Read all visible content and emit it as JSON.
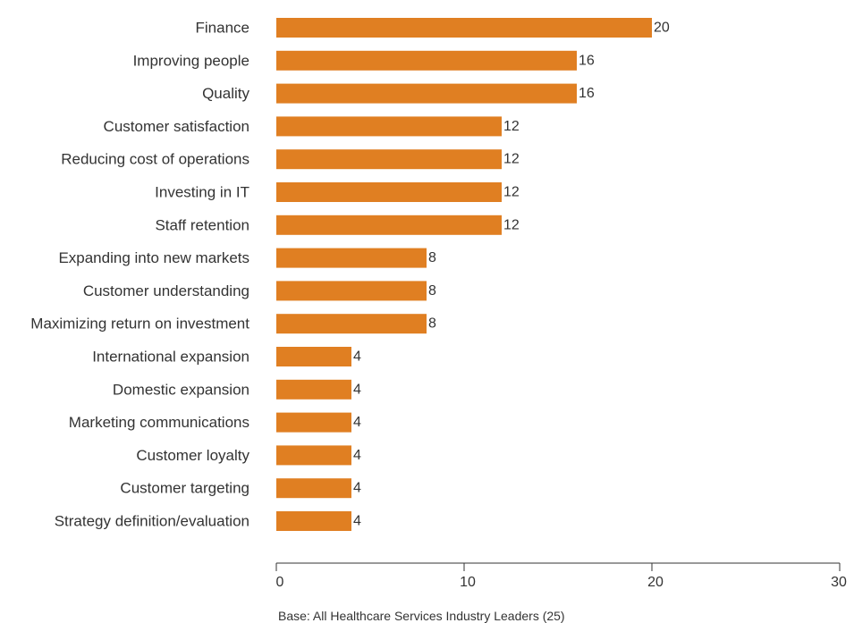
{
  "chart_data": {
    "type": "bar",
    "orientation": "horizontal",
    "categories": [
      "Finance",
      "Improving people",
      "Quality",
      "Customer satisfaction",
      "Reducing cost of operations",
      "Investing in IT",
      "Staff retention",
      "Expanding into new markets",
      "Customer understanding",
      "Maximizing return on investment",
      "International expansion",
      "Domestic expansion",
      "Marketing communications",
      "Customer loyalty",
      "Customer targeting",
      "Strategy definition/evaluation"
    ],
    "values": [
      20,
      16,
      16,
      12,
      12,
      12,
      12,
      8,
      8,
      8,
      4,
      4,
      4,
      4,
      4,
      4
    ],
    "xlim": [
      0,
      30
    ],
    "xticks": [
      0,
      10,
      20,
      30
    ],
    "grid": false,
    "bar_color": "#e07f22",
    "axis_color": "#333333"
  },
  "footnote": "Base: All Healthcare Services Industry Leaders (25)"
}
